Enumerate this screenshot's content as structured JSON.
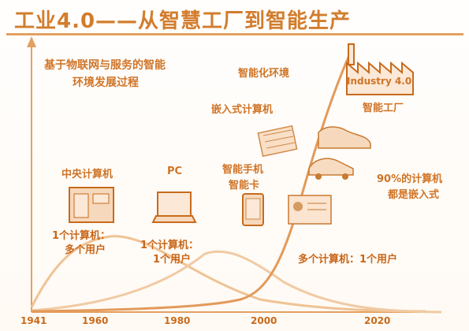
{
  "title": "工业4.0——从智慧工厂到智能生产",
  "labels": {
    "iot_line1": "基于物联网与服务的智能",
    "iot_line2": "环境发展过程",
    "smart_env": "智能化环境",
    "embedded": "嵌入式计算机",
    "smart_factory": "智能工厂",
    "mainframe": "中央计算机",
    "pc": "PC",
    "smartphone_line1": "智能手机",
    "smartphone_line2": "智能卡",
    "embedded_90_line1": "90%的计算机",
    "embedded_90_line2": "都是嵌入式",
    "one_many_line1": "1个计算机：",
    "one_many_line2": "多个用户",
    "one_one_line1": "1个计算机：",
    "one_one_line2": "1个用户",
    "many_one": "多个计算机：1个用户",
    "industry_badge": "Industry 4.0"
  },
  "years": [
    "1941",
    "1960",
    "1980",
    "2000",
    "2020"
  ],
  "colors": {
    "accent": "#d27d2d",
    "curve": "#e39a5a",
    "curve_light": "#f0c49a"
  }
}
